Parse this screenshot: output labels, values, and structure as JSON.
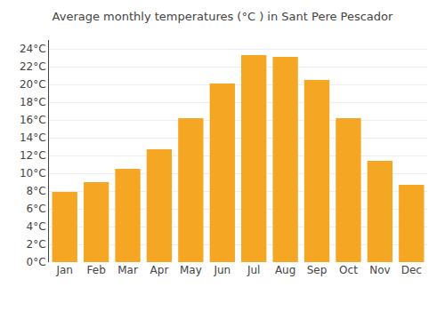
{
  "chart_data": {
    "type": "bar",
    "title": "Average monthly temperatures (°C ) in Sant Pere Pescador",
    "categories": [
      "Jan",
      "Feb",
      "Mar",
      "Apr",
      "May",
      "Jun",
      "Jul",
      "Aug",
      "Sep",
      "Oct",
      "Nov",
      "Dec"
    ],
    "values": [
      7.9,
      9.0,
      10.5,
      12.7,
      16.2,
      20.1,
      23.3,
      23.1,
      20.5,
      16.2,
      11.4,
      8.7
    ],
    "color": "#F5A623",
    "ylim": [
      0,
      25
    ],
    "yticks": [
      {
        "value": 0,
        "label": "0°C"
      },
      {
        "value": 2,
        "label": "2°C"
      },
      {
        "value": 4,
        "label": "4°C"
      },
      {
        "value": 6,
        "label": "6°C"
      },
      {
        "value": 8,
        "label": "8°C"
      },
      {
        "value": 10,
        "label": "10°C"
      },
      {
        "value": 12,
        "label": "12°C"
      },
      {
        "value": 14,
        "label": "14°C"
      },
      {
        "value": 16,
        "label": "16°C"
      },
      {
        "value": 18,
        "label": "18°C"
      },
      {
        "value": 20,
        "label": "20°C"
      },
      {
        "value": 22,
        "label": "22°C"
      },
      {
        "value": 24,
        "label": "24°C"
      }
    ],
    "grid": true
  }
}
